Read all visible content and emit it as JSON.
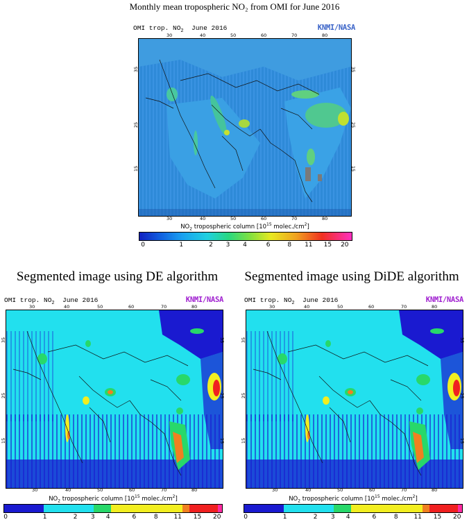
{
  "figure_title": "Monthly mean tropospheric NO₂ from OMI for June 2016",
  "segmented_titles": {
    "de": "Segmented image using DE algorithm",
    "dide": "Segmented image using DiDE algorithm"
  },
  "map_header": {
    "text": "OMI trop. NO",
    "subscript": "2",
    "date": "June 2016",
    "logo": "KNMI/NASA",
    "logo_color_top": "#3a63c8",
    "logo_color_bottom": "#a020d0"
  },
  "longitude_ticks_top": [
    "30",
    "40",
    "50",
    "60",
    "70",
    "80"
  ],
  "longitude_ticks_bottom": [
    "30",
    "40",
    "50",
    "60",
    "70",
    "80"
  ],
  "latitude_ticks": [
    "35",
    "25",
    "15"
  ],
  "colorbar": {
    "label_main": "NO",
    "label_sub": "2",
    "label_rest": " tropospheric column [10",
    "label_exp": "15",
    "label_units": " molec./cm",
    "label_units_exp": "2",
    "label_close": "]",
    "ticks": [
      "0",
      "1",
      "2",
      "3",
      "4",
      "6",
      "8",
      "11",
      "15",
      "20"
    ]
  },
  "colors": {
    "ocean_original": "#2f8ad8",
    "ocean_segmented": "#22e0ee",
    "dark_blue": "#1a1ad0",
    "green": "#28d86a",
    "yellow": "#f2ee20",
    "orange": "#f08020",
    "red": "#f02020",
    "magenta": "#ff2aa0"
  }
}
